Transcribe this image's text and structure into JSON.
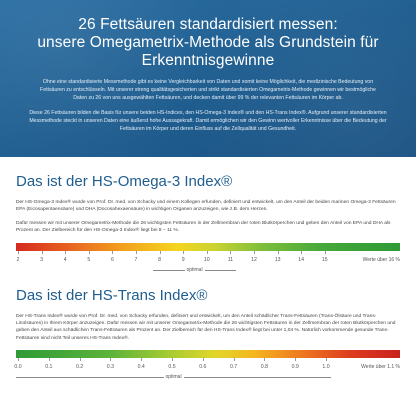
{
  "hero": {
    "title_lines": [
      "26 Fettsäuren standardisiert messen:",
      "unsere Omegametrix-Methode als Grundstein für",
      "Erkenntnisgewinne"
    ],
    "paragraph1": "Ohne eine standardisierte Messmethode gibt es keine Vergleichbarkeit von Daten und somit keine Möglichkeit, die medizinische Bedeutung von Fettsäuren zu entschlüsseln. Mit unserer streng qualitätsgesicherten und strikt standardisierten Omegametrix-Methode gewinnen wir bestmögliche Daten zu 26 von uns ausgewählten Fettsäuren, und decken damit über 99 % der relevanten Fettsäuren im Körper ab.",
    "paragraph2": "Diese 26 Fettsäuren bilden die Basis für unsere beiden HS-Indices, den HS-Omega-3 Index® und den HS-Trans Index®. Aufgrund unserer standardisierten Messmethode steckt in unseren Daten eine äußerst hohe Aussagekraft. Damit ermöglichen wir den Gewinn wertvoller Erkenntnisse über die Bedeutung der Fettsäuren im Körper und deren Einfluss auf die Zellqualität und Gesundheit."
  },
  "omega": {
    "heading": "Das ist der HS-Omega-3 Index®",
    "paragraph1": "Der HS-Omega-3 Index® wurde von Prof. Dr. med. von Schacky und einem Kollegen erfunden, definiert und entwickelt, um den Anteil der beiden marinen Omega-3 Fettsäuren EPA (Eicosapentaensäure) und DHA (Docosahexaensäure) in wichtigen Organen anzuzeigen, wie z.B. dem Herzen.",
    "paragraph2": "Dafür messen wir mit unserer Omegametrix-Methode die 26 wichtigsten Fettsäuren in der Zellmembran der roten Blutkörperchen und geben den Anteil von EPA und DHA als Prozent an. Der Zielbereich für den HS-Omega-3 Index® liegt bei 8 – 11 %.",
    "scale": {
      "ticks": [
        "2",
        "3",
        "4",
        "5",
        "6",
        "7",
        "8",
        "9",
        "10",
        "11",
        "12",
        "13",
        "14",
        "15"
      ],
      "werte_label": "Werte über 16 %",
      "optimal_label": "optimal"
    }
  },
  "trans": {
    "heading": "Das ist der HS-Trans Index®",
    "paragraph1": "Der HS-Trans Index® wurde von Prof. Dr. med. von Schacky erfunden, definiert und entwickelt, um den Anteil schädlicher Trans-Fettsäuren (Trans-Ölsäure und Trans-Linolsäuren) in Ihrem Körper anzuzeigen. Dafür messen wir mit unserer Omegametrix-Methode die 26 wichtigsten Fettsäuren in der Zellmembran der roten Blutkörperchen und geben den Anteil aus schädlichen Trans-Fettsäuren als Prozent an. Der Zielbereich für den HS-Trans Index® liegt bei unter 1,04 %. Natürlich vorkommende gesunde Trans-Fettsäuren sind nicht Teil unseres HS-Trans Index®.",
    "scale": {
      "ticks": [
        "0.0",
        "0.1",
        "0.2",
        "0.3",
        "0.4",
        "0.5",
        "0.6",
        "0.7",
        "0.8",
        "0.9",
        "1.0"
      ],
      "werte_label": "Werte über 1.1 %",
      "optimal_label": "optimal"
    }
  }
}
